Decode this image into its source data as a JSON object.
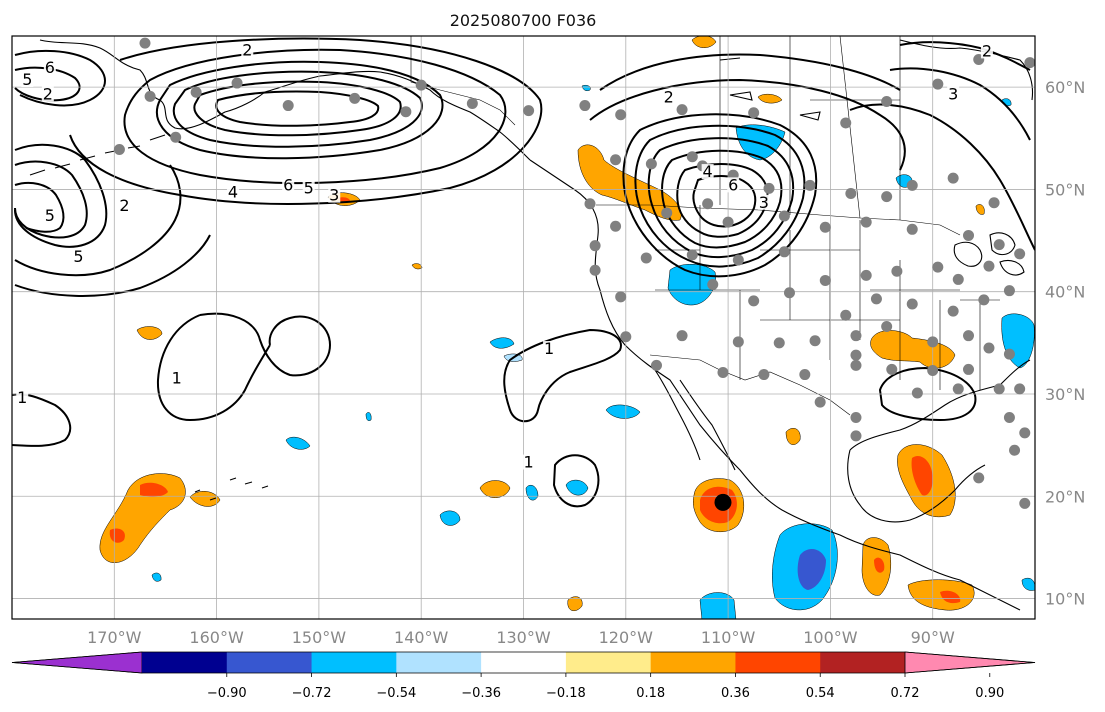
{
  "title": "2025080700 F036",
  "map": {
    "lon_range": [
      -180,
      -80
    ],
    "lat_range": [
      8,
      65
    ],
    "lon_ticks": [
      {
        "value": -170,
        "label": "170°W"
      },
      {
        "value": -160,
        "label": "160°W"
      },
      {
        "value": -150,
        "label": "150°W"
      },
      {
        "value": -140,
        "label": "140°W"
      },
      {
        "value": -130,
        "label": "130°W"
      },
      {
        "value": -120,
        "label": "120°W"
      },
      {
        "value": -110,
        "label": "110°W"
      },
      {
        "value": -100,
        "label": "100°W"
      },
      {
        "value": -90,
        "label": "90°W"
      }
    ],
    "lat_ticks": [
      {
        "value": 10,
        "label": "10°N"
      },
      {
        "value": 20,
        "label": "20°N"
      },
      {
        "value": 30,
        "label": "30°N"
      },
      {
        "value": 40,
        "label": "40°N"
      },
      {
        "value": 50,
        "label": "50°N"
      },
      {
        "value": 60,
        "label": "60°N"
      }
    ],
    "grid": true
  },
  "contour_labels": [
    {
      "text": "6",
      "lon": -176.3,
      "lat": 61.7
    },
    {
      "text": "5",
      "lon": -178.5,
      "lat": 60.5
    },
    {
      "text": "2",
      "lon": -157,
      "lat": 63.4
    },
    {
      "text": "2",
      "lon": -176.5,
      "lat": 59.1
    },
    {
      "text": "6",
      "lon": -153,
      "lat": 50.2
    },
    {
      "text": "5",
      "lon": -151,
      "lat": 49.9
    },
    {
      "text": "4",
      "lon": -158.4,
      "lat": 49.5
    },
    {
      "text": "3",
      "lon": -148.5,
      "lat": 49.2
    },
    {
      "text": "2",
      "lon": -169,
      "lat": 48.2
    },
    {
      "text": "5",
      "lon": -176.3,
      "lat": 47.2
    },
    {
      "text": "5",
      "lon": -173.5,
      "lat": 43.2
    },
    {
      "text": "1",
      "lon": -179,
      "lat": 29.4
    },
    {
      "text": "1",
      "lon": -163.9,
      "lat": 31.3
    },
    {
      "text": "1",
      "lon": -127.5,
      "lat": 34.2
    },
    {
      "text": "1",
      "lon": -129.5,
      "lat": 23.1
    },
    {
      "text": "2",
      "lon": -115.8,
      "lat": 58.8
    },
    {
      "text": "4",
      "lon": -112,
      "lat": 51.5
    },
    {
      "text": "6",
      "lon": -109.5,
      "lat": 50.2
    },
    {
      "text": "3",
      "lon": -106.5,
      "lat": 48.5
    },
    {
      "text": "2",
      "lon": -84.7,
      "lat": 63.3
    },
    {
      "text": "3",
      "lon": -88,
      "lat": 59.1
    }
  ],
  "station_markers": [
    {
      "lon": -167,
      "lat": 64.3
    },
    {
      "lon": -162,
      "lat": 59.5
    },
    {
      "lon": -158,
      "lat": 60.4
    },
    {
      "lon": -153,
      "lat": 58.2
    },
    {
      "lon": -146.5,
      "lat": 58.9
    },
    {
      "lon": -141.5,
      "lat": 57.6
    },
    {
      "lon": -140,
      "lat": 60.2
    },
    {
      "lon": -135,
      "lat": 58.4
    },
    {
      "lon": -129.5,
      "lat": 57.7
    },
    {
      "lon": -124,
      "lat": 58.2
    },
    {
      "lon": -120.5,
      "lat": 57.3
    },
    {
      "lon": -114.5,
      "lat": 57.8
    },
    {
      "lon": -107.5,
      "lat": 57.5
    },
    {
      "lon": -98.5,
      "lat": 56.5
    },
    {
      "lon": -94.5,
      "lat": 58.6
    },
    {
      "lon": -89.5,
      "lat": 60.3
    },
    {
      "lon": -85.5,
      "lat": 62.7
    },
    {
      "lon": -80.5,
      "lat": 62.4
    },
    {
      "lon": -166.5,
      "lat": 59.1
    },
    {
      "lon": -164,
      "lat": 55.1
    },
    {
      "lon": -169.5,
      "lat": 53.9
    },
    {
      "lon": -121,
      "lat": 52.9
    },
    {
      "lon": -117.5,
      "lat": 52.5
    },
    {
      "lon": -113.5,
      "lat": 53.2
    },
    {
      "lon": -112.5,
      "lat": 52.3
    },
    {
      "lon": -109.5,
      "lat": 51.4
    },
    {
      "lon": -106,
      "lat": 50.1
    },
    {
      "lon": -102,
      "lat": 50.4
    },
    {
      "lon": -98,
      "lat": 49.6
    },
    {
      "lon": -94.5,
      "lat": 49.3
    },
    {
      "lon": -92,
      "lat": 50.4
    },
    {
      "lon": -88,
      "lat": 51.1
    },
    {
      "lon": -84,
      "lat": 48.7
    },
    {
      "lon": -123.5,
      "lat": 48.6
    },
    {
      "lon": -121,
      "lat": 46.4
    },
    {
      "lon": -116,
      "lat": 47.7
    },
    {
      "lon": -112,
      "lat": 48.6
    },
    {
      "lon": -110,
      "lat": 46.8
    },
    {
      "lon": -104.5,
      "lat": 47.4
    },
    {
      "lon": -100.5,
      "lat": 46.3
    },
    {
      "lon": -96.5,
      "lat": 46.8
    },
    {
      "lon": -92,
      "lat": 46.1
    },
    {
      "lon": -86.5,
      "lat": 45.5
    },
    {
      "lon": -83.5,
      "lat": 44.6
    },
    {
      "lon": -81.5,
      "lat": 43.7
    },
    {
      "lon": -123,
      "lat": 44.5
    },
    {
      "lon": -118,
      "lat": 43.3
    },
    {
      "lon": -113.5,
      "lat": 43.6
    },
    {
      "lon": -109,
      "lat": 43.1
    },
    {
      "lon": -104.5,
      "lat": 43.9
    },
    {
      "lon": -100.5,
      "lat": 41.1
    },
    {
      "lon": -96.5,
      "lat": 41.6
    },
    {
      "lon": -93.5,
      "lat": 42.0
    },
    {
      "lon": -89.5,
      "lat": 42.4
    },
    {
      "lon": -87.5,
      "lat": 41.2
    },
    {
      "lon": -84.5,
      "lat": 42.5
    },
    {
      "lon": -123,
      "lat": 42.1
    },
    {
      "lon": -120.5,
      "lat": 39.5
    },
    {
      "lon": -111.5,
      "lat": 40.7
    },
    {
      "lon": -107.5,
      "lat": 39.1
    },
    {
      "lon": -104,
      "lat": 39.9
    },
    {
      "lon": -98.5,
      "lat": 37.7
    },
    {
      "lon": -95.5,
      "lat": 39.3
    },
    {
      "lon": -92,
      "lat": 38.8
    },
    {
      "lon": -88,
      "lat": 38.1
    },
    {
      "lon": -85,
      "lat": 39.2
    },
    {
      "lon": -82.5,
      "lat": 40.1
    },
    {
      "lon": -120,
      "lat": 35.6
    },
    {
      "lon": -114.5,
      "lat": 35.7
    },
    {
      "lon": -109,
      "lat": 35.1
    },
    {
      "lon": -105,
      "lat": 35.0
    },
    {
      "lon": -101.5,
      "lat": 35.2
    },
    {
      "lon": -97.5,
      "lat": 35.7
    },
    {
      "lon": -94.5,
      "lat": 36.6
    },
    {
      "lon": -90,
      "lat": 35.1
    },
    {
      "lon": -86.5,
      "lat": 35.7
    },
    {
      "lon": -84.5,
      "lat": 34.5
    },
    {
      "lon": -82.5,
      "lat": 33.9
    },
    {
      "lon": -117,
      "lat": 32.8
    },
    {
      "lon": -110.5,
      "lat": 32.1
    },
    {
      "lon": -106.5,
      "lat": 31.9
    },
    {
      "lon": -102.5,
      "lat": 31.9
    },
    {
      "lon": -97.5,
      "lat": 33.8
    },
    {
      "lon": -97.5,
      "lat": 32.8
    },
    {
      "lon": -94,
      "lat": 32.4
    },
    {
      "lon": -90,
      "lat": 32.3
    },
    {
      "lon": -86.5,
      "lat": 32.4
    },
    {
      "lon": -101,
      "lat": 29.2
    },
    {
      "lon": -97.5,
      "lat": 27.7
    },
    {
      "lon": -97.5,
      "lat": 25.9
    },
    {
      "lon": -91.5,
      "lat": 30.1
    },
    {
      "lon": -87.5,
      "lat": 30.5
    },
    {
      "lon": -83.5,
      "lat": 30.5
    },
    {
      "lon": -81.5,
      "lat": 30.5
    },
    {
      "lon": -82.5,
      "lat": 27.7
    },
    {
      "lon": -81,
      "lat": 26.2
    },
    {
      "lon": -82,
      "lat": 24.5
    },
    {
      "lon": -81,
      "lat": 19.3
    },
    {
      "lon": -85.5,
      "lat": 21.8
    }
  ],
  "center_marker": {
    "lon": -110.5,
    "lat": 19.4
  },
  "colorbar": {
    "colors": [
      "#9b30d0",
      "#000090",
      "#3757d0",
      "#00bfff",
      "#b0e2ff",
      "#ffffff",
      "#ffec8b",
      "#ffa500",
      "#ff4500",
      "#b22222",
      "#ff89b0"
    ],
    "ticks": [
      "−0.90",
      "−0.72",
      "−0.54",
      "−0.36",
      "−0.18",
      "0.18",
      "0.36",
      "0.54",
      "0.72",
      "0.90"
    ]
  },
  "fill_colors": {
    "orange": "#ffa500",
    "red": "#ff4500",
    "light_blue": "#00bfff",
    "pale_blue": "#b0e2ff",
    "blue": "#3757d0"
  }
}
